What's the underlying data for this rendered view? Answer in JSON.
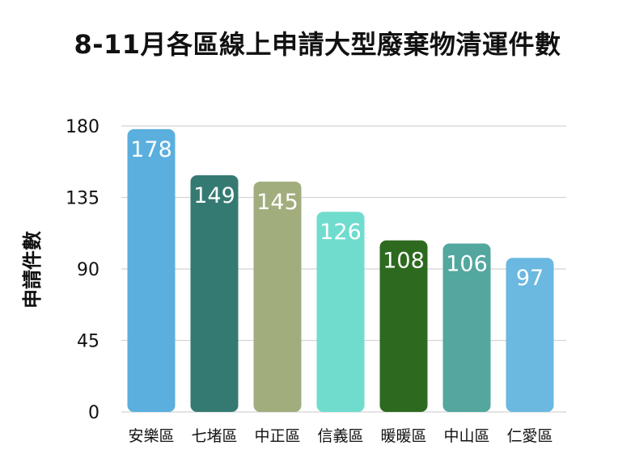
{
  "chart_data": {
    "type": "bar",
    "title": "8-11月各區線上申請大型廢棄物清運件數",
    "xlabel": "",
    "ylabel": "申請件數",
    "ylim": [
      0,
      180
    ],
    "yticks": [
      0,
      45,
      90,
      135,
      180
    ],
    "grid": true,
    "legend": "none",
    "categories": [
      "安樂區",
      "七堵區",
      "中正區",
      "信義區",
      "暖暖區",
      "中山區",
      "仁愛區"
    ],
    "values": [
      178,
      149,
      145,
      126,
      108,
      106,
      97
    ],
    "colors": [
      "#5aafde",
      "#357a72",
      "#a1ad7d",
      "#6fdcce",
      "#2d6a1f",
      "#53a79f",
      "#6bb8e0"
    ]
  }
}
